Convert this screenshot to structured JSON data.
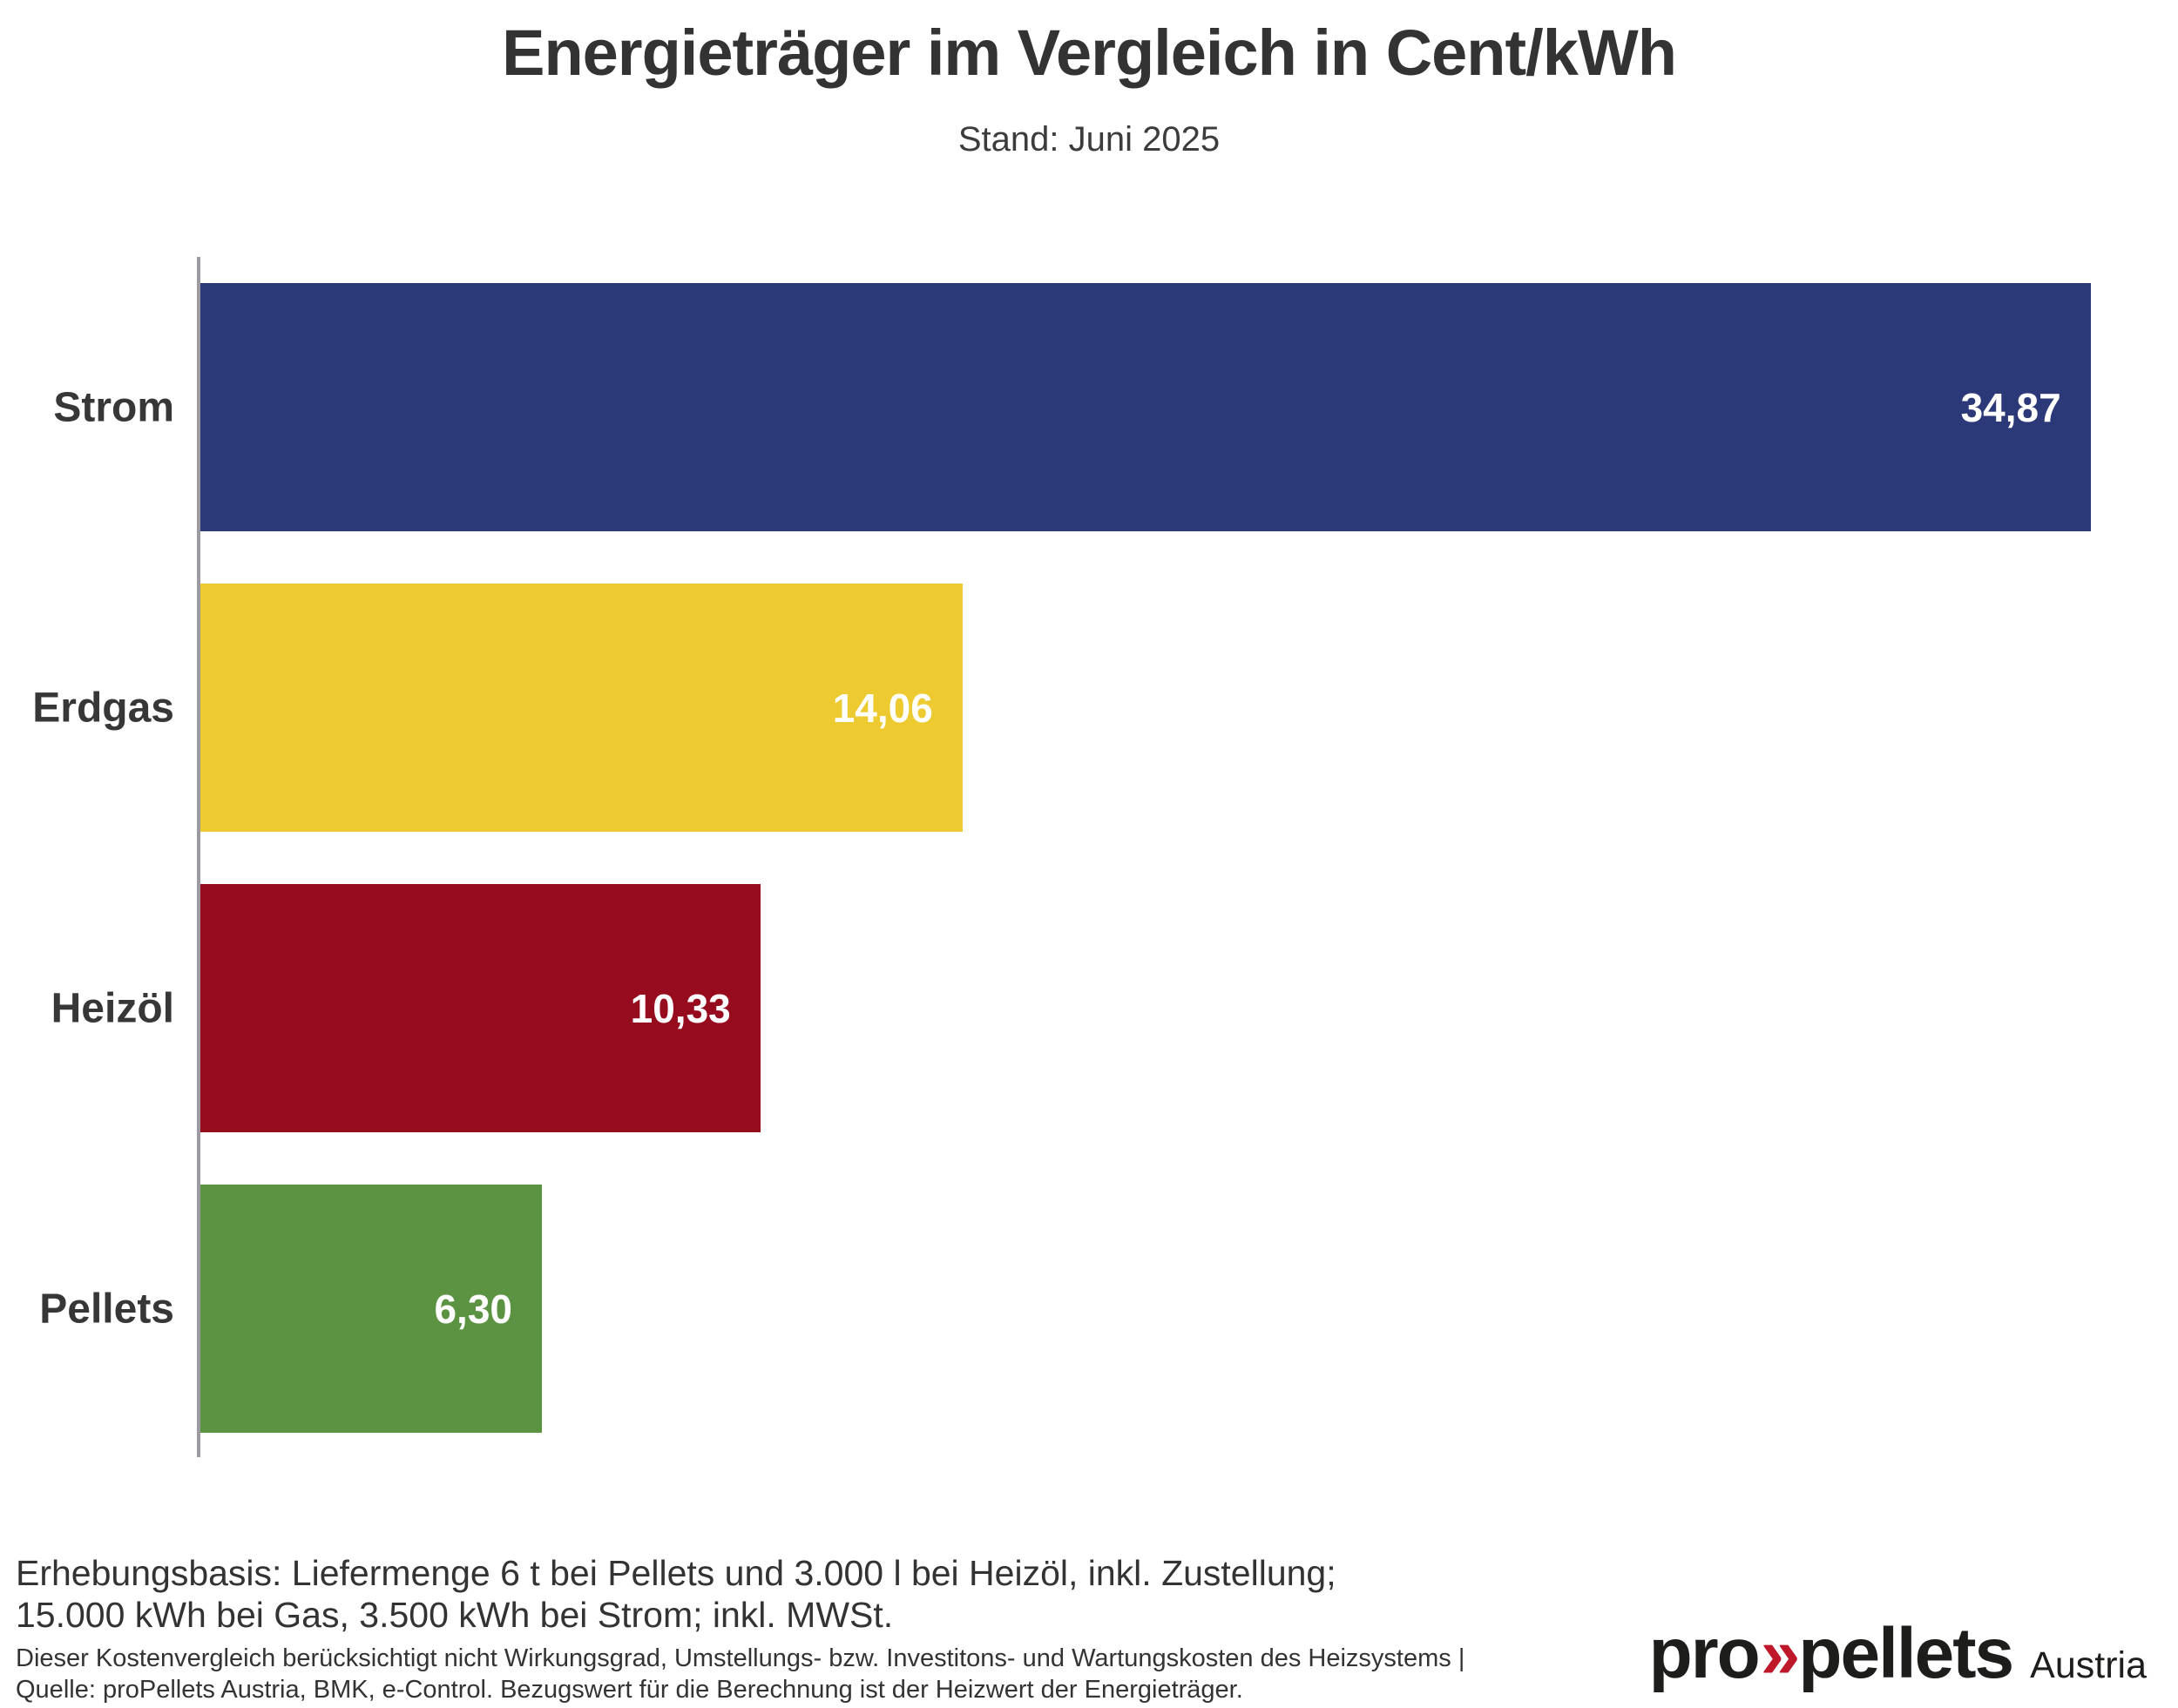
{
  "header": {
    "title": "Energieträger im Vergleich in Cent/kWh",
    "subtitle": "Stand: Juni 2025"
  },
  "chart_data": {
    "type": "bar",
    "orientation": "horizontal",
    "title": "Energieträger im Vergleich in Cent/kWh",
    "subtitle": "Stand: Juni 2025",
    "unit": "Cent/kWh",
    "categories": [
      "Strom",
      "Erdgas",
      "Heizöl",
      "Pellets"
    ],
    "values": [
      34.87,
      14.06,
      10.33,
      6.3
    ],
    "value_labels": [
      "34,87",
      "14,06",
      "10,33",
      "6,30"
    ],
    "bar_colors": [
      "#2b3978",
      "#eeca31",
      "#970b1f",
      "#5c9342"
    ],
    "value_label_color": "#ffffff",
    "xlabel": "",
    "ylabel": "",
    "xlim": [
      0,
      36
    ],
    "grid": false,
    "legend": false,
    "axis_line_color": "#9a9aa0"
  },
  "footer": {
    "basis_line1": "Erhebungsbasis: Liefermenge 6 t bei Pellets und 3.000 l bei Heizöl, inkl. Zustellung;",
    "basis_line2": "15.000 kWh bei Gas, 3.500 kWh bei Strom; inkl. MWSt.",
    "note_line1": "Dieser Kostenvergleich berücksichtigt nicht Wirkungsgrad, Umstellungs- bzw. Investitons- und Wartungskosten des Heizsystems |",
    "note_line2": "Quelle: proPellets Austria, BMK, e-Control. Bezugswert für die Berechnung ist der Heizwert der Energieträger."
  },
  "logo": {
    "part1": "pro",
    "chevrons": "»",
    "part2": "pellets",
    "suffix": "Austria",
    "chevron_color": "#c0182b"
  }
}
